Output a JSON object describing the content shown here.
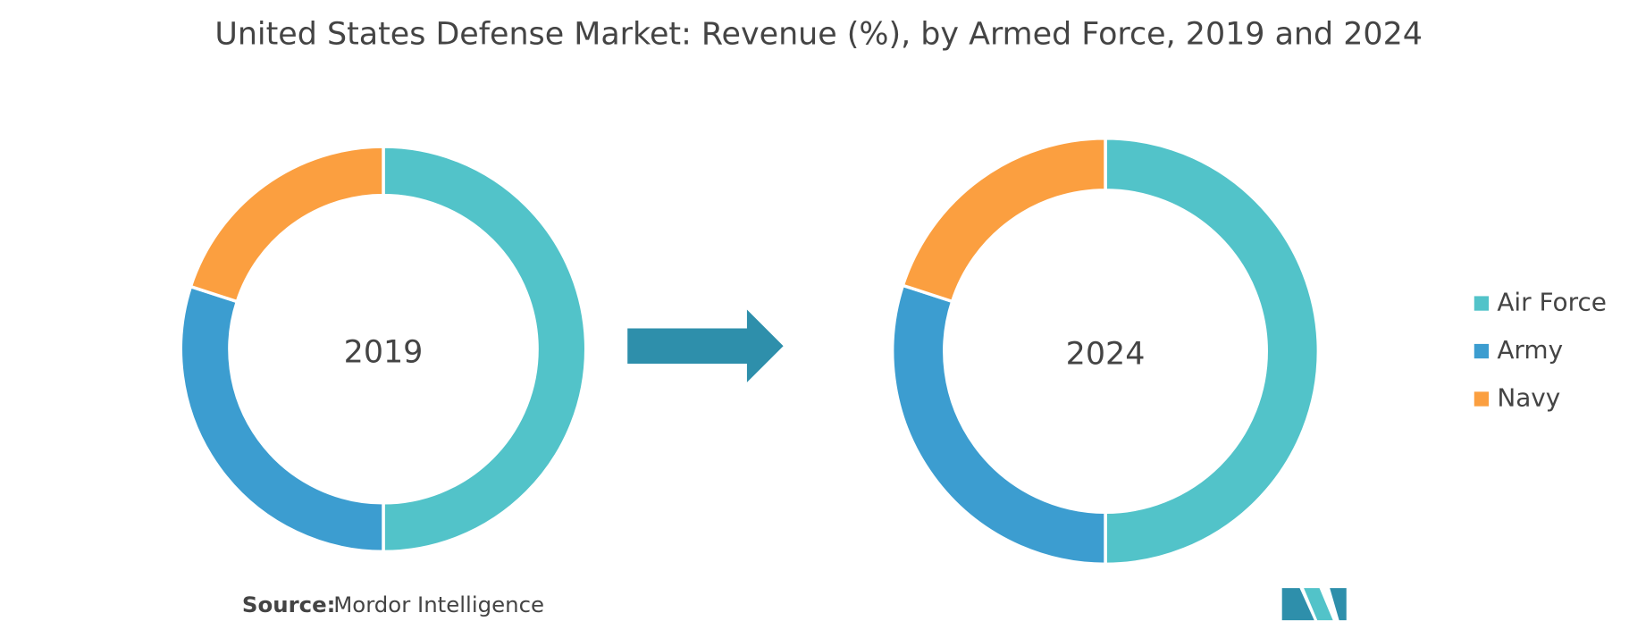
{
  "title": "United States Defense Market: Revenue (%), by Armed Force, 2019 and 2024",
  "chart_data": [
    {
      "type": "donut",
      "center_label": "2019",
      "categories": [
        "Air Force",
        "Army",
        "Navy"
      ],
      "values": [
        50,
        30,
        20
      ],
      "colors": [
        "#52c3c9",
        "#3c9dd0",
        "#fb9f40"
      ]
    },
    {
      "type": "donut",
      "center_label": "2024",
      "categories": [
        "Air Force",
        "Army",
        "Navy"
      ],
      "values": [
        50,
        30,
        20
      ],
      "colors": [
        "#52c3c9",
        "#3c9dd0",
        "#fb9f40"
      ]
    }
  ],
  "source_label": "Source:",
  "source": "Mordor Intelligence"
}
